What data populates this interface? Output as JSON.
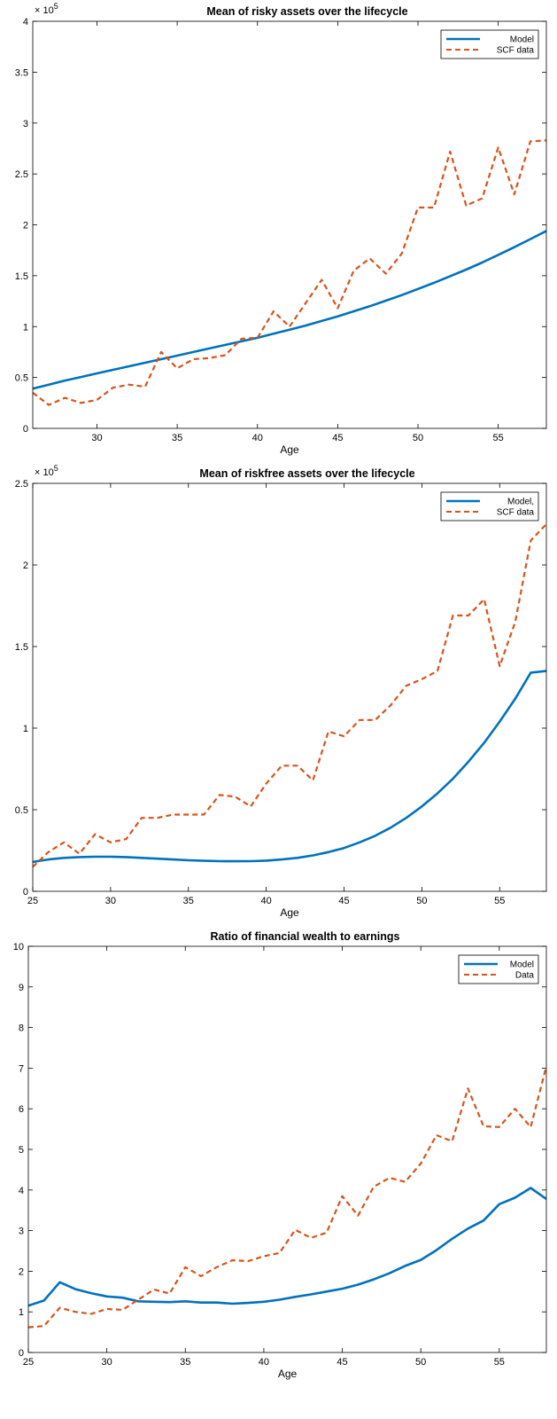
{
  "chart_data": [
    {
      "type": "line",
      "title": "Mean of risky assets  over the lifecycle",
      "xlabel": "Age",
      "ylabel": "",
      "xlim": [
        26,
        58
      ],
      "ylim": [
        0,
        400000
      ],
      "x_ticks": [
        "30",
        "35",
        "40",
        "45",
        "50",
        "55"
      ],
      "x_tick_values": [
        30,
        35,
        40,
        45,
        50,
        55
      ],
      "y_ticks": [
        "0",
        "0.5",
        "1",
        "1.5",
        "2",
        "2.5",
        "3",
        "3.5",
        "4"
      ],
      "y_tick_values": [
        0,
        50000,
        100000,
        150000,
        200000,
        250000,
        300000,
        350000,
        400000
      ],
      "exponent_label": "× 10",
      "exponent_power": "5",
      "legend_position": "top-right",
      "grid": false,
      "series": [
        {
          "name": "Model",
          "style": "solid",
          "color": "#0072BD",
          "x": [
            26,
            27,
            28,
            29,
            30,
            31,
            32,
            33,
            34,
            35,
            36,
            37,
            38,
            39,
            40,
            41,
            42,
            43,
            44,
            45,
            46,
            47,
            48,
            49,
            50,
            51,
            52,
            53,
            54,
            55,
            56,
            57,
            58
          ],
          "values": [
            39000,
            43000,
            47000,
            50500,
            54000,
            57500,
            61000,
            64500,
            68000,
            71500,
            75000,
            78500,
            82000,
            85500,
            89000,
            93000,
            97000,
            101000,
            105500,
            110000,
            115000,
            120000,
            125500,
            131000,
            137000,
            143000,
            149500,
            156000,
            163000,
            170500,
            178000,
            186000,
            194000
          ]
        },
        {
          "name": "SCF data",
          "style": "dashed",
          "color": "#D95319",
          "x": [
            26,
            27,
            28,
            29,
            30,
            31,
            32,
            33,
            34,
            35,
            36,
            37,
            38,
            39,
            40,
            41,
            42,
            43,
            44,
            45,
            46,
            47,
            48,
            49,
            50,
            51,
            52,
            53,
            54,
            55,
            56,
            57,
            58
          ],
          "values": [
            35000,
            23000,
            30000,
            25000,
            28000,
            40000,
            43000,
            41000,
            75000,
            59000,
            68000,
            69000,
            72000,
            88000,
            89000,
            115000,
            100000,
            123000,
            146000,
            118000,
            155000,
            167000,
            152000,
            172000,
            217000,
            217000,
            272000,
            219000,
            226000,
            276000,
            230000,
            282000,
            283000
          ]
        }
      ]
    },
    {
      "type": "line",
      "title": "Mean of riskfree assets over the lifecycle",
      "xlabel": "Age",
      "ylabel": "",
      "xlim": [
        25,
        58
      ],
      "ylim": [
        0,
        250000
      ],
      "x_ticks": [
        "25",
        "30",
        "35",
        "40",
        "45",
        "50",
        "55"
      ],
      "x_tick_values": [
        25,
        30,
        35,
        40,
        45,
        50,
        55
      ],
      "y_ticks": [
        "0",
        "0.5",
        "1",
        "1.5",
        "2",
        "2.5"
      ],
      "y_tick_values": [
        0,
        50000,
        100000,
        150000,
        200000,
        250000
      ],
      "exponent_label": "× 10",
      "exponent_power": "5",
      "legend_position": "top-right",
      "grid": false,
      "series": [
        {
          "name": "Model,",
          "style": "solid",
          "color": "#0072BD",
          "x": [
            25,
            26,
            27,
            28,
            29,
            30,
            31,
            32,
            33,
            34,
            35,
            36,
            37,
            38,
            39,
            40,
            41,
            42,
            43,
            44,
            45,
            46,
            47,
            48,
            49,
            50,
            51,
            52,
            53,
            54,
            55,
            56,
            57,
            58
          ],
          "values": [
            18000,
            19500,
            20500,
            21000,
            21200,
            21200,
            21000,
            20500,
            20000,
            19500,
            19000,
            18700,
            18500,
            18400,
            18500,
            18800,
            19500,
            20500,
            22000,
            24000,
            26500,
            30000,
            34000,
            39000,
            45000,
            52000,
            60000,
            69000,
            79500,
            91000,
            104000,
            118000,
            134000,
            135000
          ]
        },
        {
          "name": "SCF data",
          "style": "dashed",
          "color": "#D95319",
          "x": [
            25,
            26,
            27,
            28,
            29,
            30,
            31,
            32,
            33,
            34,
            35,
            36,
            37,
            38,
            39,
            40,
            41,
            42,
            43,
            44,
            45,
            46,
            47,
            48,
            49,
            50,
            51,
            52,
            53,
            54,
            55,
            56,
            57,
            58
          ],
          "values": [
            15000,
            24000,
            30000,
            23000,
            35000,
            30000,
            32000,
            45000,
            45000,
            47000,
            47000,
            47000,
            59000,
            58000,
            52000,
            66000,
            77000,
            77000,
            68000,
            98000,
            95000,
            105000,
            105000,
            114000,
            126000,
            130000,
            135000,
            169000,
            169000,
            179000,
            138000,
            165000,
            215000,
            225000
          ]
        }
      ]
    },
    {
      "type": "line",
      "title": "Ratio of financial wealth to earnings",
      "xlabel": "Age",
      "ylabel": "",
      "xlim": [
        25,
        58
      ],
      "ylim": [
        0,
        10
      ],
      "x_ticks": [
        "25",
        "30",
        "35",
        "40",
        "45",
        "50",
        "55"
      ],
      "x_tick_values": [
        25,
        30,
        35,
        40,
        45,
        50,
        55
      ],
      "y_ticks": [
        "0",
        "1",
        "2",
        "3",
        "4",
        "5",
        "6",
        "7",
        "8",
        "9",
        "10"
      ],
      "y_tick_values": [
        0,
        1,
        2,
        3,
        4,
        5,
        6,
        7,
        8,
        9,
        10
      ],
      "legend_position": "top-right",
      "grid": false,
      "series": [
        {
          "name": "Model",
          "style": "solid",
          "color": "#0072BD",
          "x": [
            25,
            26,
            27,
            28,
            29,
            30,
            31,
            32,
            33,
            34,
            35,
            36,
            37,
            38,
            39,
            40,
            41,
            42,
            43,
            44,
            45,
            46,
            47,
            48,
            49,
            50,
            51,
            52,
            53,
            54,
            55,
            56,
            57,
            58
          ],
          "values": [
            1.15,
            1.28,
            1.73,
            1.56,
            1.46,
            1.38,
            1.35,
            1.26,
            1.25,
            1.24,
            1.26,
            1.23,
            1.23,
            1.2,
            1.22,
            1.25,
            1.3,
            1.37,
            1.43,
            1.5,
            1.57,
            1.67,
            1.8,
            1.95,
            2.13,
            2.28,
            2.52,
            2.8,
            3.05,
            3.25,
            3.65,
            3.81,
            4.05,
            3.78
          ]
        },
        {
          "name": "Data",
          "style": "dashed",
          "color": "#D95319",
          "x": [
            25,
            26,
            27,
            28,
            29,
            30,
            31,
            32,
            33,
            34,
            35,
            36,
            37,
            38,
            39,
            40,
            41,
            42,
            43,
            44,
            45,
            46,
            47,
            48,
            49,
            50,
            51,
            52,
            53,
            54,
            55,
            56,
            57,
            58
          ],
          "values": [
            0.62,
            0.65,
            1.1,
            1.0,
            0.95,
            1.07,
            1.05,
            1.3,
            1.55,
            1.45,
            2.1,
            1.88,
            2.1,
            2.27,
            2.25,
            2.37,
            2.45,
            3.02,
            2.82,
            2.95,
            3.85,
            3.37,
            4.08,
            4.3,
            4.2,
            4.65,
            5.35,
            5.2,
            6.5,
            5.57,
            5.55,
            6.0,
            5.55,
            7.05
          ]
        }
      ]
    }
  ]
}
